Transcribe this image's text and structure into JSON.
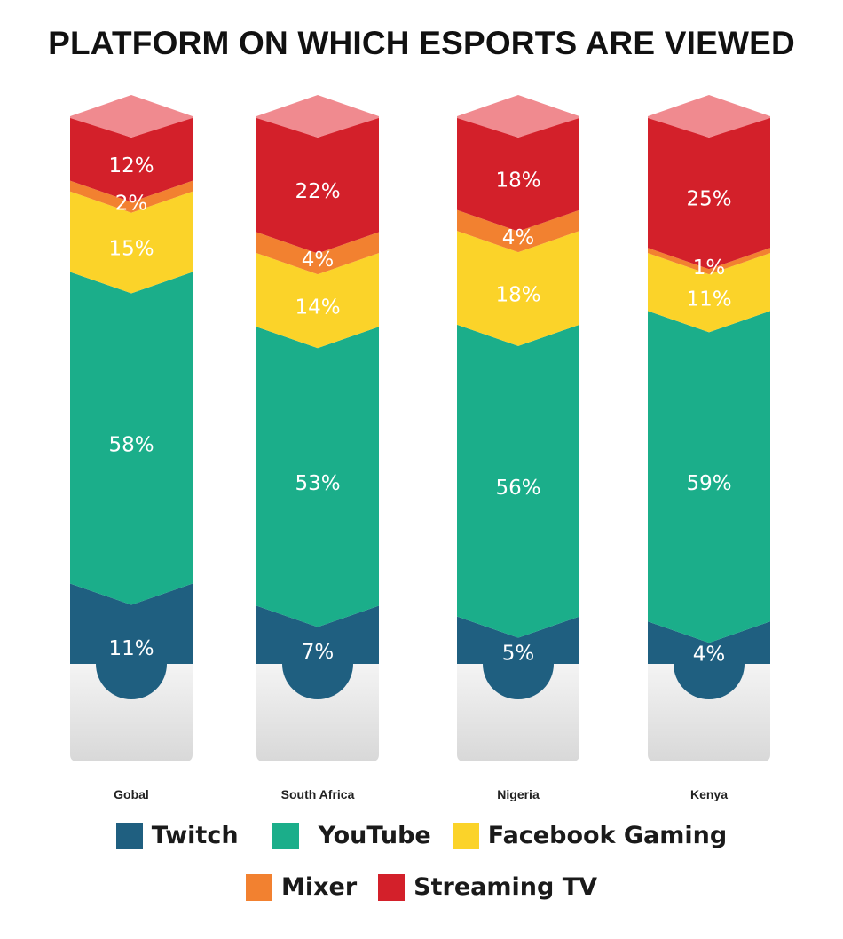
{
  "chart_data": {
    "type": "bar",
    "stacked": true,
    "title": "PLATFORM ON WHICH ESPORTS ARE VIEWED",
    "categories": [
      "Gobal",
      "South Africa",
      "Nigeria",
      "Kenya"
    ],
    "unit": "%",
    "series": [
      {
        "name": "Twitch",
        "color": "#1f5f80",
        "values": [
          11,
          7,
          5,
          4
        ]
      },
      {
        "name": "YouTube",
        "color": "#1bae8a",
        "values": [
          58,
          53,
          56,
          59
        ]
      },
      {
        "name": "Facebook Gaming",
        "color": "#fbd329",
        "values": [
          15,
          14,
          18,
          11
        ]
      },
      {
        "name": "Mixer",
        "color": "#f28130",
        "values": [
          2,
          4,
          4,
          1
        ]
      },
      {
        "name": "Streaming TV",
        "color": "#d3202a",
        "values": [
          12,
          22,
          18,
          25
        ]
      }
    ],
    "legend_position": "bottom"
  },
  "legend": {
    "row1": [
      "Twitch",
      "YouTube",
      "Facebook Gaming"
    ],
    "row2": [
      "Mixer",
      "Streaming TV"
    ]
  }
}
